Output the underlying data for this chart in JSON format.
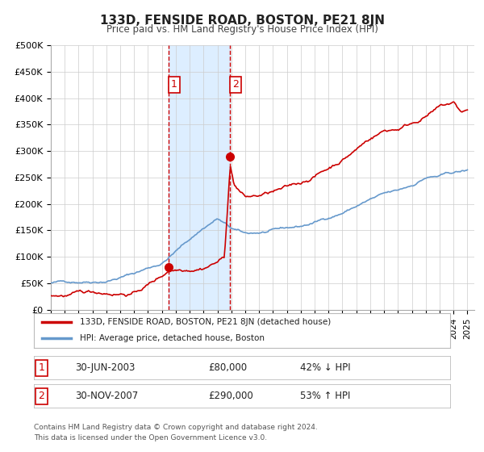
{
  "title": "133D, FENSIDE ROAD, BOSTON, PE21 8JN",
  "subtitle": "Price paid vs. HM Land Registry's House Price Index (HPI)",
  "ylim": [
    0,
    500000
  ],
  "yticks": [
    0,
    50000,
    100000,
    150000,
    200000,
    250000,
    300000,
    350000,
    400000,
    450000,
    500000
  ],
  "ytick_labels": [
    "£0",
    "£50K",
    "£100K",
    "£150K",
    "£200K",
    "£250K",
    "£300K",
    "£350K",
    "£400K",
    "£450K",
    "£500K"
  ],
  "xlim_start": 1995.0,
  "xlim_end": 2025.5,
  "xtick_years": [
    1995,
    1996,
    1997,
    1998,
    1999,
    2000,
    2001,
    2002,
    2003,
    2004,
    2005,
    2006,
    2007,
    2008,
    2009,
    2010,
    2011,
    2012,
    2013,
    2014,
    2015,
    2016,
    2017,
    2018,
    2019,
    2020,
    2021,
    2022,
    2023,
    2024,
    2025
  ],
  "marker1_x": 2003.5,
  "marker1_y": 80000,
  "marker2_x": 2007.917,
  "marker2_y": 290000,
  "vline1_x": 2003.5,
  "vline2_x": 2007.917,
  "shade_color": "#ddeeff",
  "vline_color": "#cc0000",
  "property_line_color": "#cc0000",
  "hpi_line_color": "#6699cc",
  "legend_label_property": "133D, FENSIDE ROAD, BOSTON, PE21 8JN (detached house)",
  "legend_label_hpi": "HPI: Average price, detached house, Boston",
  "table_row1_label": "1",
  "table_row1_date": "30-JUN-2003",
  "table_row1_price": "£80,000",
  "table_row1_hpi": "42% ↓ HPI",
  "table_row2_label": "2",
  "table_row2_date": "30-NOV-2007",
  "table_row2_price": "£290,000",
  "table_row2_hpi": "53% ↑ HPI",
  "footer_line1": "Contains HM Land Registry data © Crown copyright and database right 2024.",
  "footer_line2": "This data is licensed under the Open Government Licence v3.0.",
  "background_color": "#ffffff",
  "grid_color": "#cccccc",
  "hpi_xp": [
    1995,
    1997,
    1999,
    2001,
    2003,
    2005,
    2006,
    2007,
    2008,
    2009,
    2010,
    2011,
    2012,
    2013,
    2014,
    2015,
    2016,
    2017,
    2018,
    2019,
    2020,
    2021,
    2022,
    2023,
    2024,
    2025
  ],
  "hpi_fp": [
    50000,
    54000,
    60000,
    75000,
    95000,
    140000,
    162000,
    180000,
    160000,
    148000,
    150000,
    152000,
    155000,
    158000,
    165000,
    175000,
    185000,
    198000,
    210000,
    218000,
    222000,
    232000,
    248000,
    250000,
    255000,
    258000
  ],
  "prop_xp": [
    1995,
    1997,
    1999,
    2001,
    2003.0,
    2003.5,
    2005,
    2006,
    2007.0,
    2007.5,
    2007.917,
    2008.2,
    2009,
    2010,
    2011,
    2012,
    2013,
    2014,
    2015,
    2016,
    2017,
    2018,
    2019,
    2020,
    2021,
    2022,
    2023,
    2024.0,
    2024.5,
    2025
  ],
  "prop_fp": [
    28000,
    30000,
    32000,
    35000,
    68000,
    80000,
    88000,
    95000,
    108000,
    115000,
    290000,
    255000,
    230000,
    232000,
    238000,
    242000,
    250000,
    265000,
    280000,
    298000,
    318000,
    340000,
    355000,
    360000,
    372000,
    388000,
    402000,
    408000,
    390000,
    393000
  ]
}
